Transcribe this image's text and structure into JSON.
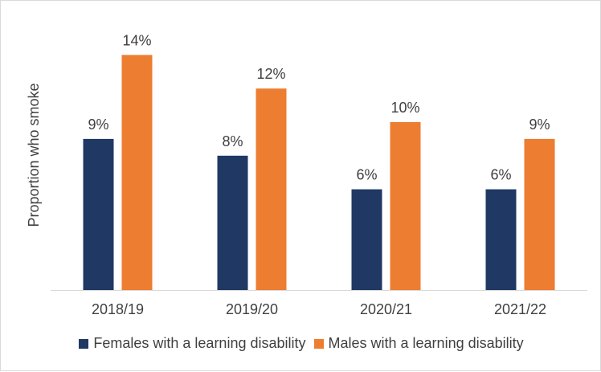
{
  "chart_data": {
    "type": "bar",
    "ylabel": "Proportion who smoke",
    "categories": [
      "2018/19",
      "2019/20",
      "2020/21",
      "2021/22"
    ],
    "series": [
      {
        "name": "Females with a learning disability",
        "values": [
          9,
          8,
          6,
          6
        ],
        "labels": [
          "9%",
          "8%",
          "6%",
          "6%"
        ],
        "color": "#1f3864"
      },
      {
        "name": "Males with a learning disability",
        "values": [
          14,
          12,
          10,
          9
        ],
        "labels": [
          "14%",
          "12%",
          "10%",
          "9%"
        ],
        "color": "#ed7d31"
      }
    ],
    "ylim": [
      0,
      14
    ],
    "grid": false,
    "legend_position": "bottom"
  }
}
